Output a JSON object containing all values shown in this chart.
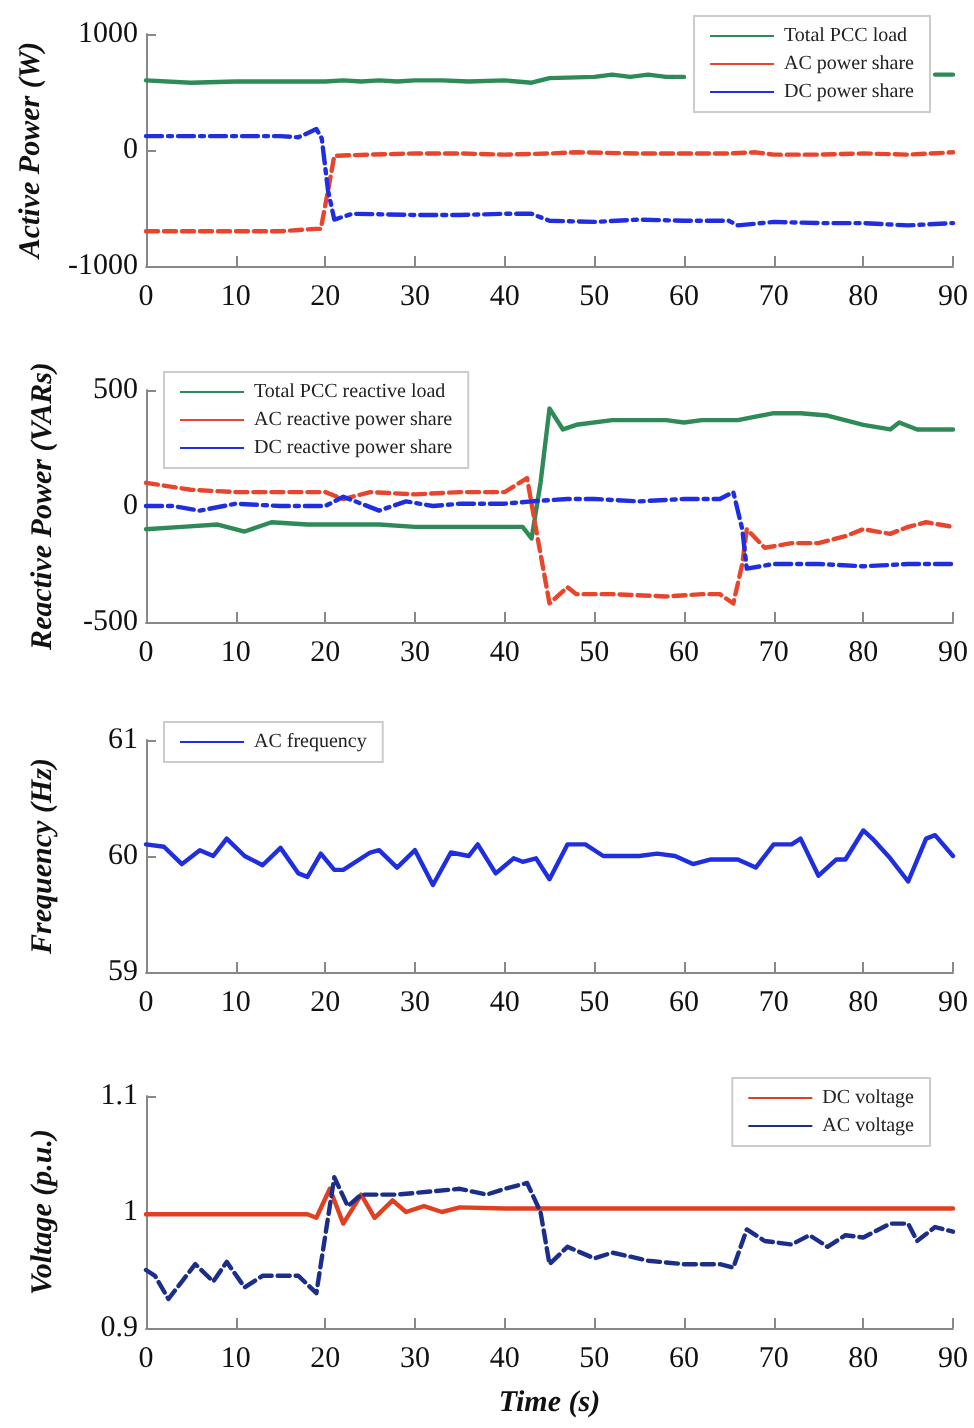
{
  "chart_data": [
    {
      "type": "line",
      "ylabel": "Active Power (W)",
      "xlim": [
        0,
        90
      ],
      "xticks": [
        0,
        10,
        20,
        30,
        40,
        50,
        60,
        70,
        80,
        90
      ],
      "ylim": [
        -1000,
        1000
      ],
      "yticks": [
        -1000,
        0,
        1000
      ],
      "legend": "top right",
      "grid": false,
      "series": [
        {
          "name": "Total PCC load",
          "color": "#2e8b57",
          "line_style": "solid",
          "x": [
            0,
            5,
            10,
            15,
            20,
            22,
            24,
            26,
            28,
            30,
            33,
            36,
            40,
            43,
            45,
            50,
            52,
            54,
            56,
            58,
            60,
            65,
            70,
            75,
            80,
            85,
            88,
            90
          ],
          "values": [
            600,
            580,
            590,
            590,
            590,
            600,
            590,
            600,
            590,
            600,
            600,
            590,
            600,
            580,
            620,
            630,
            650,
            630,
            650,
            630,
            630,
            null,
            null,
            null,
            null,
            null,
            650,
            650
          ]
        },
        {
          "name": "AC power share",
          "color": "#e8452c",
          "line_style": "dashed",
          "x": [
            0,
            5,
            10,
            15,
            19,
            19.5,
            20.3,
            21,
            25,
            30,
            35,
            40,
            45,
            48,
            55,
            60,
            65,
            68,
            70,
            75,
            80,
            85,
            90
          ],
          "values": [
            -700,
            -700,
            -700,
            -700,
            -680,
            -680,
            -350,
            -50,
            -40,
            -30,
            -30,
            -40,
            -30,
            -20,
            -30,
            -30,
            -30,
            -20,
            -40,
            -40,
            -30,
            -40,
            -20
          ]
        },
        {
          "name": "DC power share",
          "color": "#1f2fe0",
          "line_style": "dashdot",
          "x": [
            0,
            5,
            10,
            15,
            17,
            19,
            19.6,
            20.3,
            21,
            23,
            30,
            35,
            40,
            43,
            45,
            50,
            55,
            60,
            65,
            66,
            70,
            75,
            80,
            85,
            90
          ],
          "values": [
            120,
            120,
            120,
            120,
            110,
            180,
            100,
            -350,
            -600,
            -550,
            -560,
            -560,
            -550,
            -550,
            -610,
            -620,
            -600,
            -610,
            -610,
            -650,
            -620,
            -630,
            -630,
            -650,
            -630
          ]
        }
      ]
    },
    {
      "type": "line",
      "ylabel": "Reactive Power (VARs)",
      "xlim": [
        0,
        90
      ],
      "xticks": [
        0,
        10,
        20,
        30,
        40,
        50,
        60,
        70,
        80,
        90
      ],
      "ylim": [
        -500,
        500
      ],
      "yticks": [
        -500,
        0,
        500
      ],
      "legend": "top left",
      "grid": false,
      "series": [
        {
          "name": "Total PCC reactive load",
          "color": "#2e8b57",
          "line_style": "solid",
          "x": [
            0,
            4,
            8,
            11,
            14,
            18,
            22,
            26,
            30,
            35,
            40,
            42,
            43,
            44,
            45,
            46.5,
            48,
            52,
            58,
            60,
            62,
            66,
            70,
            73,
            76,
            80,
            83,
            84,
            86,
            90
          ],
          "values": [
            -100,
            -90,
            -80,
            -110,
            -70,
            -80,
            -80,
            -80,
            -90,
            -90,
            -90,
            -90,
            -140,
            100,
            420,
            330,
            350,
            370,
            370,
            360,
            370,
            370,
            400,
            400,
            390,
            350,
            330,
            360,
            330,
            330
          ]
        },
        {
          "name": "AC reactive power share",
          "color": "#e8452c",
          "line_style": "dashed",
          "x": [
            0,
            5,
            10,
            15,
            20,
            22,
            25,
            30,
            35,
            40,
            42.5,
            43.5,
            45,
            47,
            48,
            52,
            58,
            62,
            64,
            65.5,
            66.5,
            67,
            69,
            72,
            75,
            78,
            80,
            83,
            85,
            87,
            90
          ],
          "values": [
            100,
            70,
            60,
            60,
            60,
            30,
            60,
            50,
            60,
            60,
            120,
            -100,
            -420,
            -350,
            -380,
            -380,
            -390,
            -380,
            -380,
            -420,
            -250,
            -100,
            -180,
            -160,
            -160,
            -130,
            -100,
            -120,
            -90,
            -70,
            -90
          ]
        },
        {
          "name": "DC reactive power share",
          "color": "#1f2fe0",
          "line_style": "dashdot",
          "x": [
            0,
            3,
            6,
            10,
            15,
            20,
            22,
            26,
            29,
            32,
            35,
            40,
            43,
            47,
            50,
            55,
            60,
            64,
            65.5,
            66.5,
            67,
            70,
            75,
            80,
            85,
            90
          ],
          "values": [
            0,
            0,
            -20,
            10,
            0,
            0,
            40,
            -20,
            20,
            0,
            10,
            10,
            20,
            30,
            30,
            20,
            30,
            30,
            60,
            -100,
            -270,
            -250,
            -250,
            -260,
            -250,
            -250
          ]
        }
      ]
    },
    {
      "type": "line",
      "ylabel": "Frequency (Hz)",
      "xlim": [
        0,
        90
      ],
      "xticks": [
        0,
        10,
        20,
        30,
        40,
        50,
        60,
        70,
        80,
        90
      ],
      "ylim": [
        59,
        61
      ],
      "yticks": [
        59,
        60,
        61
      ],
      "legend": "top left",
      "grid": false,
      "series": [
        {
          "name": "AC frequency",
          "color": "#1f2fe0",
          "line_style": "solid",
          "x": [
            0,
            2,
            4,
            6,
            7.5,
            9,
            11,
            13,
            15,
            17,
            18,
            19.5,
            21,
            22,
            25,
            26,
            28,
            30,
            32,
            34,
            36,
            37,
            39,
            41,
            42,
            43.5,
            45,
            47,
            49,
            51,
            55,
            57,
            59,
            61,
            63,
            66,
            68,
            70,
            72,
            73,
            75,
            77,
            78,
            80,
            81,
            83,
            85,
            87,
            88,
            90
          ],
          "values": [
            60.1,
            60.08,
            59.93,
            60.05,
            60,
            60.15,
            60,
            59.92,
            60.07,
            59.85,
            59.82,
            60.02,
            59.88,
            59.88,
            60.03,
            60.05,
            59.9,
            60.05,
            59.75,
            60.03,
            60,
            60.1,
            59.85,
            59.98,
            59.95,
            59.98,
            59.8,
            60.1,
            60.1,
            60,
            60,
            60.02,
            60,
            59.93,
            59.97,
            59.97,
            59.9,
            60.1,
            60.1,
            60.15,
            59.83,
            59.97,
            59.97,
            60.22,
            60.15,
            59.98,
            59.78,
            60.15,
            60.18,
            60
          ]
        }
      ]
    },
    {
      "type": "line",
      "xlabel": "Time (s)",
      "ylabel": "Voltage (p.u.)",
      "xlim": [
        0,
        90
      ],
      "xticks": [
        0,
        10,
        20,
        30,
        40,
        50,
        60,
        70,
        80,
        90
      ],
      "ylim": [
        0.9,
        1.1
      ],
      "yticks": [
        0.9,
        1,
        1.1
      ],
      "legend": "top right",
      "grid": false,
      "series": [
        {
          "name": "DC voltage",
          "color": "#e0401f",
          "line_style": "solid",
          "x": [
            0,
            5,
            10,
            15,
            18,
            19,
            20.5,
            22,
            24,
            25.5,
            27.5,
            29,
            31,
            33,
            35,
            40,
            50,
            60,
            70,
            80,
            90
          ],
          "values": [
            0.998,
            0.998,
            0.998,
            0.998,
            0.998,
            0.995,
            1.02,
            0.99,
            1.015,
            0.995,
            1.01,
            1,
            1.005,
            1,
            1.004,
            1.003,
            1.003,
            1.003,
            1.003,
            1.003,
            1.003
          ]
        },
        {
          "name": "AC voltage",
          "color": "#1a2e8a",
          "line_style": "dashed",
          "x": [
            0,
            1,
            2.5,
            4,
            5.5,
            7.5,
            9,
            11,
            13,
            17,
            19,
            20,
            21,
            22.5,
            24,
            28,
            35,
            38,
            40,
            42.5,
            44,
            45,
            47,
            50,
            52,
            56,
            60,
            64,
            65.5,
            67,
            69,
            72,
            74,
            76,
            78,
            80,
            83,
            85,
            86,
            88,
            90
          ],
          "values": [
            0.95,
            0.945,
            0.925,
            0.94,
            0.955,
            0.94,
            0.957,
            0.935,
            0.945,
            0.945,
            0.93,
            0.98,
            1.03,
            1.005,
            1.015,
            1.015,
            1.02,
            1.015,
            1.02,
            1.025,
            1,
            0.955,
            0.97,
            0.96,
            0.965,
            0.958,
            0.955,
            0.955,
            0.952,
            0.985,
            0.975,
            0.972,
            0.98,
            0.97,
            0.98,
            0.978,
            0.99,
            0.99,
            0.975,
            0.987,
            0.983
          ]
        }
      ]
    }
  ]
}
